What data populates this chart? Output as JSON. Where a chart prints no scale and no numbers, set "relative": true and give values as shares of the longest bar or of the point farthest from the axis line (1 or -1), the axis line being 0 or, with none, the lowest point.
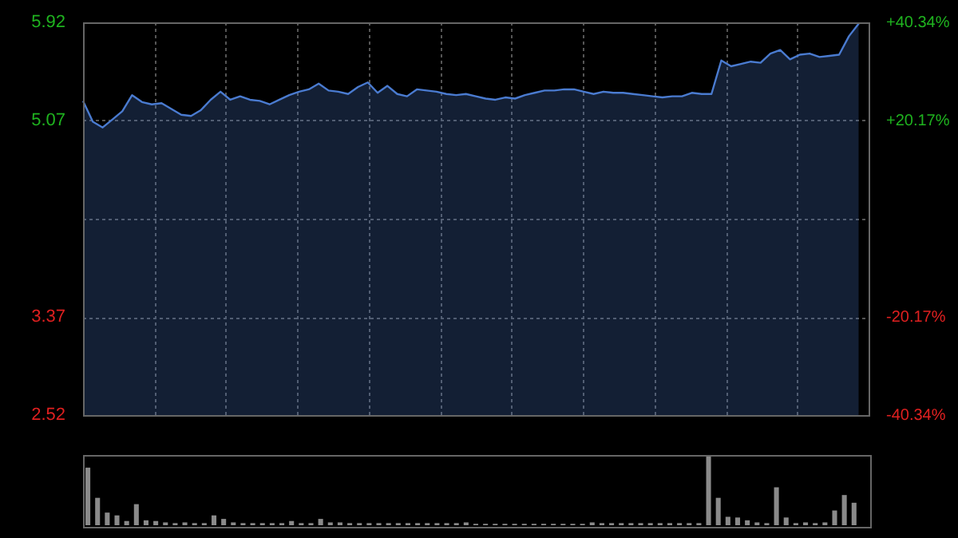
{
  "chart_data": [
    {
      "type": "area",
      "categories": [
        null,
        null,
        null,
        null,
        null,
        null,
        null,
        null,
        null,
        null,
        null,
        null,
        null,
        null,
        null,
        null,
        null,
        null,
        null,
        null,
        null,
        null,
        null,
        null,
        null,
        null,
        null,
        null,
        null,
        null,
        null,
        null,
        null,
        null,
        null,
        null,
        null,
        null,
        null,
        null,
        null,
        null,
        null,
        null,
        null,
        null,
        null,
        null,
        null,
        null,
        null,
        null,
        null,
        null,
        null,
        null,
        null,
        null,
        null,
        null,
        null,
        null,
        null,
        null,
        null,
        null,
        null,
        null,
        null,
        null,
        null,
        null,
        null,
        null,
        null,
        null,
        null,
        null,
        null,
        null,
        null
      ],
      "series": [
        {
          "color": "#4a7bd0",
          "values": [
            5.24,
            5.06,
            5.01,
            5.08,
            5.15,
            5.29,
            5.23,
            5.21,
            5.22,
            5.17,
            5.12,
            5.11,
            5.16,
            5.25,
            5.32,
            5.25,
            5.28,
            5.25,
            5.24,
            5.21,
            5.25,
            5.29,
            5.32,
            5.34,
            5.39,
            5.33,
            5.32,
            5.3,
            5.36,
            5.4,
            5.31,
            5.37,
            5.3,
            5.28,
            5.34,
            5.33,
            5.32,
            5.3,
            5.29,
            5.3,
            5.28,
            5.26,
            5.25,
            5.27,
            5.26,
            5.29,
            5.31,
            5.33,
            5.33,
            5.34,
            5.34,
            5.32,
            5.3,
            5.32,
            5.31,
            5.31,
            5.3,
            5.29,
            5.28,
            5.27,
            5.28,
            5.28,
            5.31,
            5.3,
            5.3,
            5.59,
            5.54,
            5.56,
            5.58,
            5.57,
            5.65,
            5.68,
            5.6,
            5.64,
            5.65,
            5.62,
            5.63,
            5.64,
            5.8,
            5.91,
            null
          ]
        }
      ],
      "ylim": [
        2.52,
        5.92
      ],
      "yticks": [
        2.52,
        3.37,
        {
          "value": 4.22,
          "label": null
        },
        5.07,
        5.92
      ],
      "y2lim": [
        -40.34,
        40.34
      ],
      "y2ticks": [
        {
          "value": -40.34,
          "label": "-40.34%"
        },
        {
          "value": -20.17,
          "label": "-20.17%"
        },
        {
          "value": 0,
          "label": null
        },
        {
          "value": 20.17,
          "label": "+20.17%"
        },
        {
          "value": 40.34,
          "label": "+40.34%"
        }
      ],
      "grid": true,
      "tick_labels": "y"
    },
    {
      "type": "bar",
      "relative": true,
      "color": "#8a8a8a",
      "categories": [
        null,
        null,
        null,
        null,
        null,
        null,
        null,
        null,
        null,
        null,
        null,
        null,
        null,
        null,
        null,
        null,
        null,
        null,
        null,
        null,
        null,
        null,
        null,
        null,
        null,
        null,
        null,
        null,
        null,
        null,
        null,
        null,
        null,
        null,
        null,
        null,
        null,
        null,
        null,
        null,
        null,
        null,
        null,
        null,
        null,
        null,
        null,
        null,
        null,
        null,
        null,
        null,
        null,
        null,
        null,
        null,
        null,
        null,
        null,
        null,
        null,
        null,
        null,
        null,
        null,
        null,
        null,
        null,
        null,
        null,
        null,
        null,
        null,
        null,
        null,
        null,
        null,
        null,
        null,
        null,
        null
      ],
      "values": [
        0.82,
        0.39,
        0.18,
        0.14,
        0.06,
        0.3,
        0.07,
        0.06,
        0.04,
        0.03,
        0.04,
        0.03,
        0.03,
        0.14,
        0.09,
        0.04,
        0.03,
        0.03,
        0.03,
        0.03,
        0.03,
        0.06,
        0.03,
        0.03,
        0.09,
        0.04,
        0.04,
        0.03,
        0.03,
        0.03,
        0.03,
        0.03,
        0.03,
        0.03,
        0.03,
        0.03,
        0.03,
        0.03,
        0.03,
        0.04,
        0.02,
        0.02,
        0.02,
        0.02,
        0.02,
        0.02,
        0.02,
        0.02,
        0.02,
        0.02,
        0.02,
        0.02,
        0.04,
        0.03,
        0.03,
        0.03,
        0.03,
        0.03,
        0.03,
        0.03,
        0.03,
        0.03,
        0.03,
        0.03,
        1,
        0.39,
        0.12,
        0.11,
        0.07,
        0.04,
        0.03,
        0.54,
        0.11,
        0.03,
        0.04,
        0.03,
        0.04,
        0.21,
        0.43,
        0.32,
        null
      ],
      "tick_labels": false
    }
  ]
}
